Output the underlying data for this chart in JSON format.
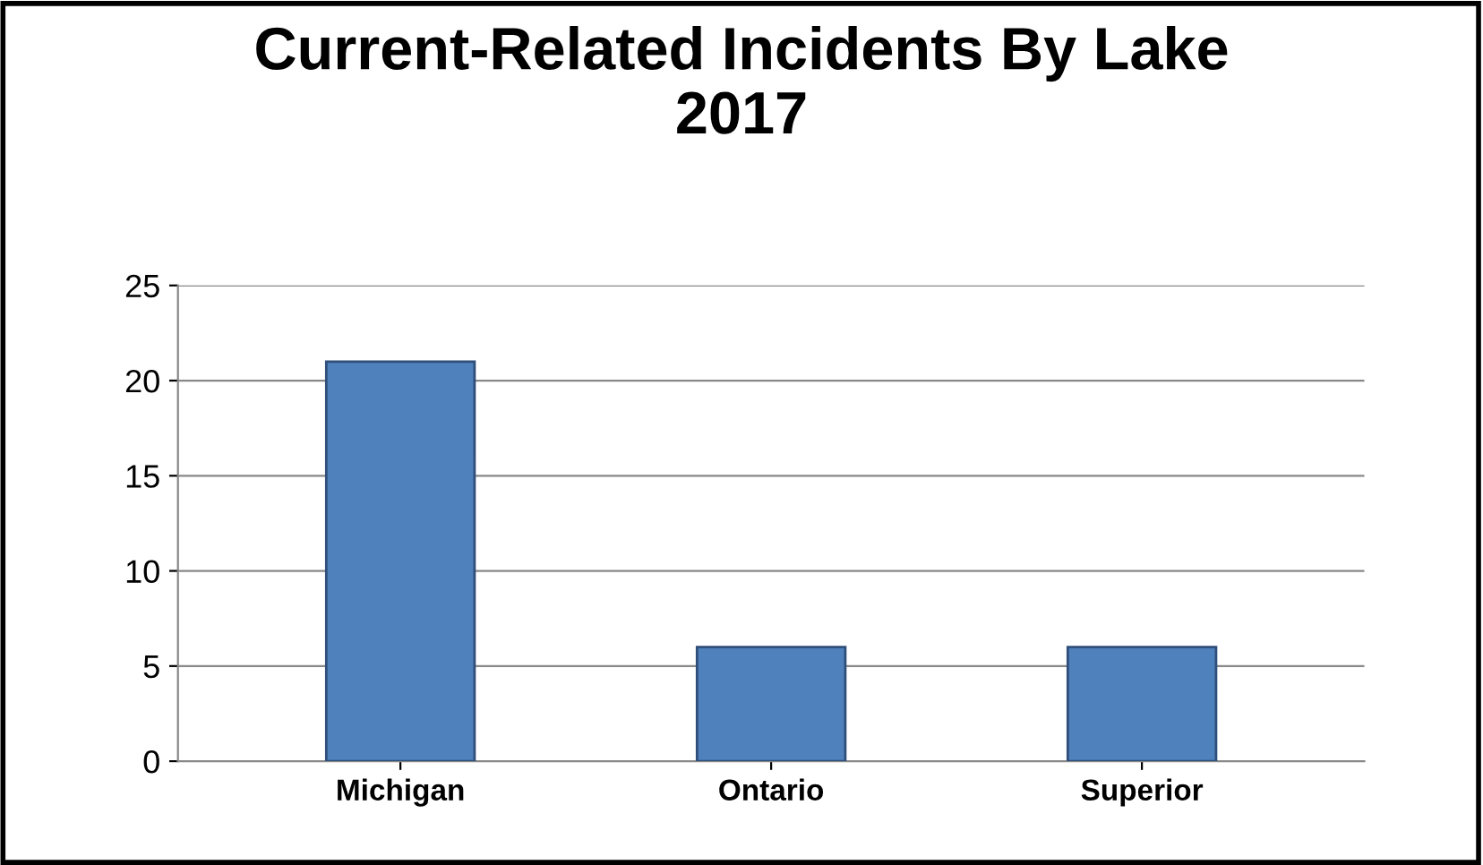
{
  "chart_data": {
    "type": "bar",
    "title": "Current-Related Incidents By Lake\n2017",
    "categories": [
      "Michigan",
      "Ontario",
      "Superior"
    ],
    "values": [
      21,
      6,
      6
    ],
    "color": "#4f81bd",
    "ylim": [
      0,
      25
    ],
    "yticks": [
      0,
      5,
      10,
      15,
      20,
      25
    ],
    "grid": "y",
    "legend": false
  }
}
